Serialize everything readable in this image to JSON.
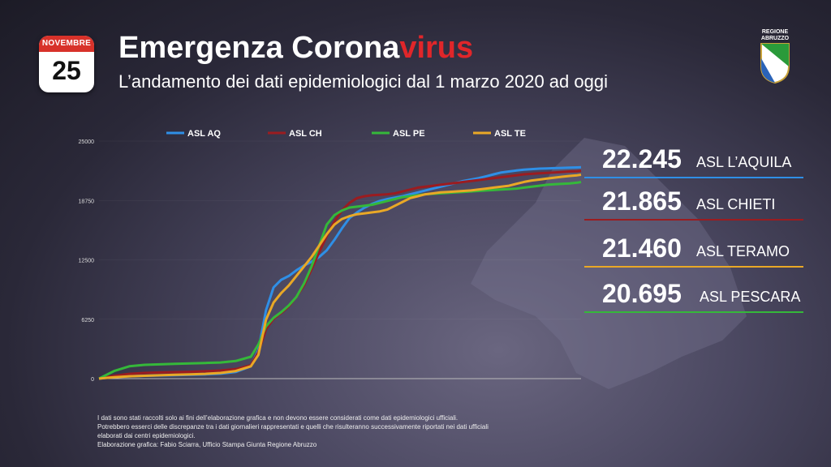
{
  "calendar": {
    "month": "NOVEMBRE",
    "day": "25"
  },
  "title": {
    "main": "Emergenza Corona",
    "accent": "virus"
  },
  "subtitle": "L’andamento dei dati epidemiologici dal 1 marzo 2020 ad oggi",
  "logo": {
    "line1": "REGIONE",
    "line2": "ABRUZZO"
  },
  "stats": [
    {
      "value": "22.245",
      "label": "ASL L’AQUILA",
      "color": "#2f8fe6"
    },
    {
      "value": "21.865",
      "label": "ASL CHIETI",
      "color": "#9b1c20"
    },
    {
      "value": "21.460",
      "label": "ASL TERAMO",
      "color": "#e9a826"
    },
    {
      "value": "20.695",
      "label": "ASL PESCARA",
      "color": "#35b83a"
    }
  ],
  "footnote": [
    "I dati sono stati raccolti solo ai fini dell’elaborazione grafica e non devono essere considerati come dati epidemiologici ufficiali.",
    "Potrebbero esserci delle discrepanze tra i dati giornalieri rappresentati e quelli che risulteranno successivamente riportati nei dati ufficiali",
    "elaborati dai centri epidemiologici.",
    "Elaborazione grafica: Fabio Sciarra, Ufficio Stampa Giunta Regione Abruzzo"
  ],
  "chart_data": {
    "type": "line",
    "yticks": [
      0,
      6250,
      12500,
      18750,
      25000
    ],
    "ytick_labels": [
      "0",
      "6250",
      "12500",
      "18750",
      "25000"
    ],
    "ylim": [
      0,
      25000
    ],
    "x": [
      0,
      20,
      40,
      60,
      80,
      100,
      120,
      140,
      160,
      180,
      200,
      210,
      220,
      230,
      240,
      250,
      260,
      270,
      280,
      290,
      300,
      310,
      320,
      330,
      340,
      350,
      360,
      370,
      380,
      390,
      400,
      410,
      420,
      430,
      440,
      450,
      460,
      470,
      480,
      490,
      500,
      510,
      520,
      530,
      540,
      550,
      560,
      570,
      580,
      590,
      600,
      610,
      620,
      630,
      635
    ],
    "series": [
      {
        "name": "ASL AQ",
        "color": "#2f8fe6",
        "values": [
          0,
          200,
          250,
          300,
          330,
          360,
          400,
          450,
          520,
          700,
          1300,
          3000,
          7200,
          9600,
          10400,
          10800,
          11400,
          11900,
          12300,
          12800,
          13500,
          14600,
          15800,
          16900,
          17500,
          18000,
          18400,
          18700,
          18900,
          19050,
          19200,
          19400,
          19600,
          19800,
          20000,
          20200,
          20400,
          20600,
          20800,
          20950,
          21100,
          21300,
          21500,
          21700,
          21800,
          21900,
          22000,
          22050,
          22100,
          22120,
          22150,
          22180,
          22200,
          22230,
          22245
        ]
      },
      {
        "name": "ASL CH",
        "color": "#9b1c20",
        "values": [
          0,
          300,
          500,
          600,
          650,
          680,
          720,
          780,
          850,
          1000,
          1400,
          2800,
          5200,
          6300,
          6900,
          7600,
          8600,
          9800,
          11500,
          13300,
          15000,
          16500,
          17700,
          18500,
          19000,
          19200,
          19300,
          19350,
          19400,
          19500,
          19700,
          19900,
          20100,
          20200,
          20300,
          20400,
          20500,
          20600,
          20700,
          20800,
          20900,
          21000,
          21100,
          21200,
          21300,
          21400,
          21500,
          21550,
          21600,
          21650,
          21700,
          21750,
          21800,
          21830,
          21865
        ]
      },
      {
        "name": "ASL PE",
        "color": "#35b83a",
        "values": [
          0,
          800,
          1300,
          1450,
          1500,
          1550,
          1600,
          1650,
          1700,
          1850,
          2300,
          3600,
          5500,
          6400,
          7000,
          7700,
          8600,
          10000,
          11800,
          14000,
          16200,
          17200,
          17700,
          18000,
          18100,
          18200,
          18300,
          18500,
          18700,
          18900,
          19100,
          19200,
          19300,
          19400,
          19450,
          19500,
          19550,
          19600,
          19650,
          19700,
          19750,
          19800,
          19850,
          19900,
          19950,
          20000,
          20100,
          20200,
          20300,
          20400,
          20450,
          20500,
          20550,
          20620,
          20695
        ]
      },
      {
        "name": "ASL TE",
        "color": "#e9a826",
        "values": [
          0,
          150,
          250,
          300,
          350,
          400,
          450,
          500,
          600,
          800,
          1300,
          2500,
          6200,
          8000,
          9000,
          9800,
          10800,
          11800,
          12800,
          14000,
          15200,
          16200,
          16800,
          17100,
          17300,
          17400,
          17500,
          17600,
          17800,
          18200,
          18600,
          19000,
          19200,
          19400,
          19500,
          19600,
          19650,
          19700,
          19750,
          19800,
          19900,
          20000,
          20100,
          20200,
          20300,
          20500,
          20700,
          20850,
          20950,
          21050,
          21150,
          21250,
          21330,
          21400,
          21460
        ]
      }
    ]
  }
}
